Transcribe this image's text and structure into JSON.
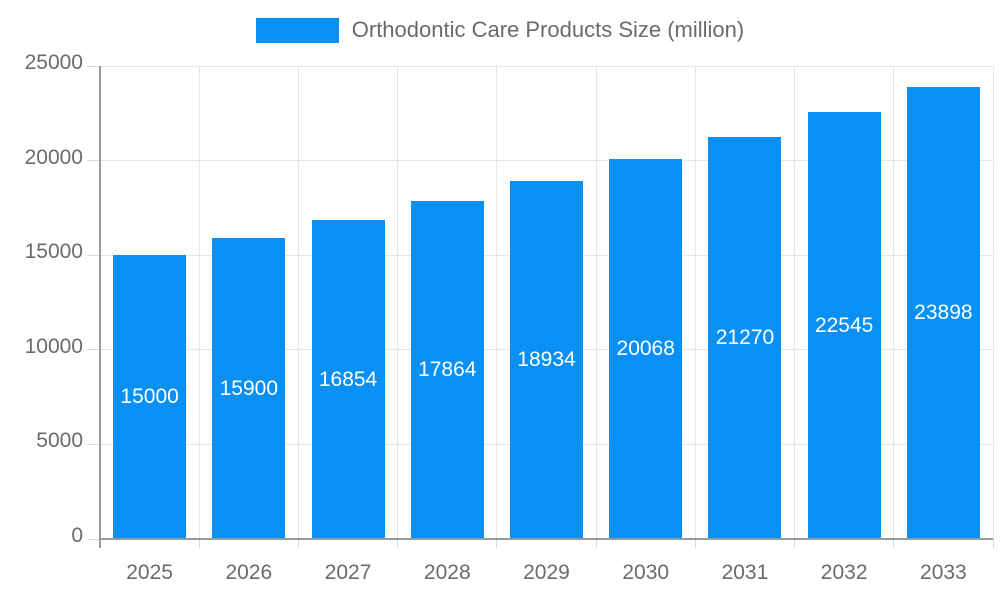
{
  "chart_data": {
    "type": "bar",
    "title": "Orthodontic Care Products Size (million)",
    "categories": [
      "2025",
      "2026",
      "2027",
      "2028",
      "2029",
      "2030",
      "2031",
      "2032",
      "2033"
    ],
    "values": [
      15000,
      15900,
      16854,
      17864,
      18934,
      20068,
      21270,
      22545,
      23898
    ],
    "xlabel": "",
    "ylabel": "",
    "ylim": [
      0,
      25000
    ],
    "ytick_step": 5000,
    "yticks": [
      "0",
      "5000",
      "10000",
      "15000",
      "20000",
      "25000"
    ],
    "grid": true,
    "legend_position": "top",
    "colors": {
      "bar": "#0890f5",
      "bar_label": "#ffffff",
      "tick_text": "#6b6b6b",
      "axis": "#9a9a9a",
      "gridline": "#e6e6e6"
    }
  }
}
